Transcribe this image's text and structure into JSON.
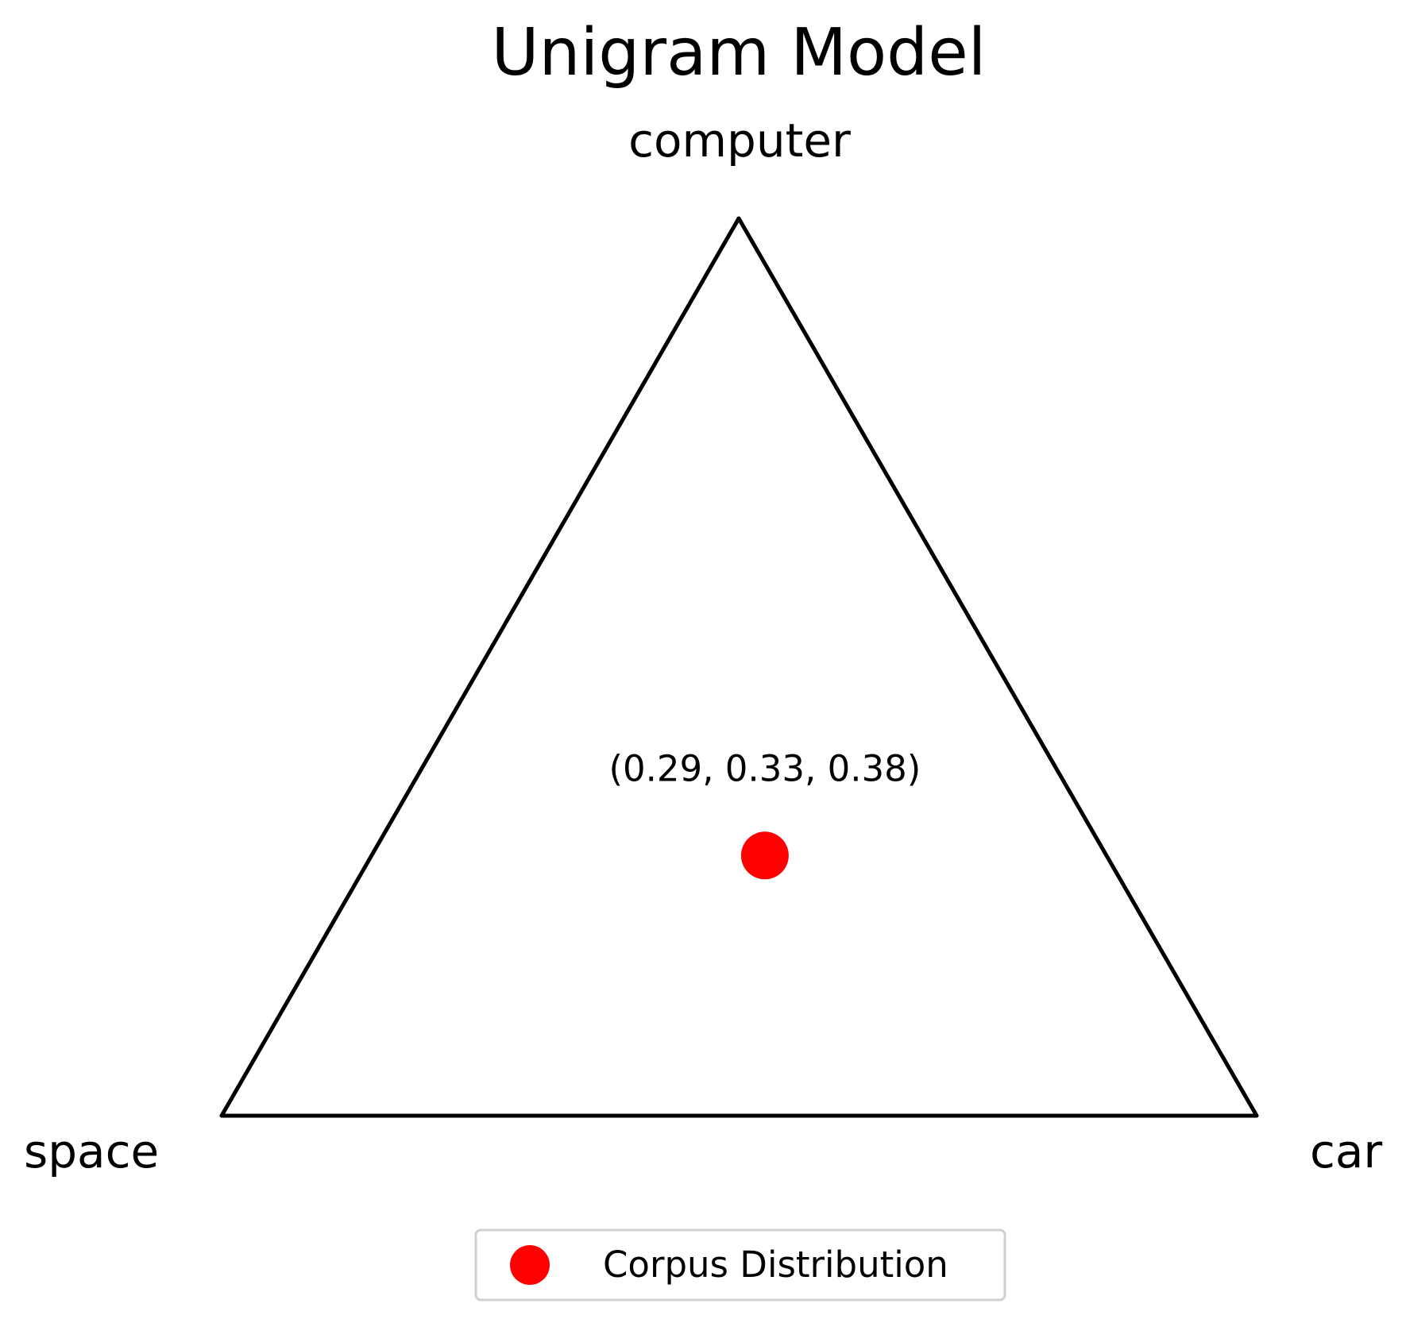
{
  "chart_data": {
    "type": "scatter",
    "subtype": "ternary-simplex",
    "title": "Unigram Model",
    "vertices": [
      "computer",
      "space",
      "car"
    ],
    "points": [
      {
        "values": [
          0.29,
          0.33,
          0.38
        ],
        "label": "(0.29, 0.33, 0.38)",
        "series": "Corpus Distribution"
      }
    ],
    "series": [
      {
        "name": "Corpus Distribution",
        "color": "#ff0000"
      }
    ],
    "legend": {
      "position": "bottom-center"
    },
    "grid": false
  }
}
